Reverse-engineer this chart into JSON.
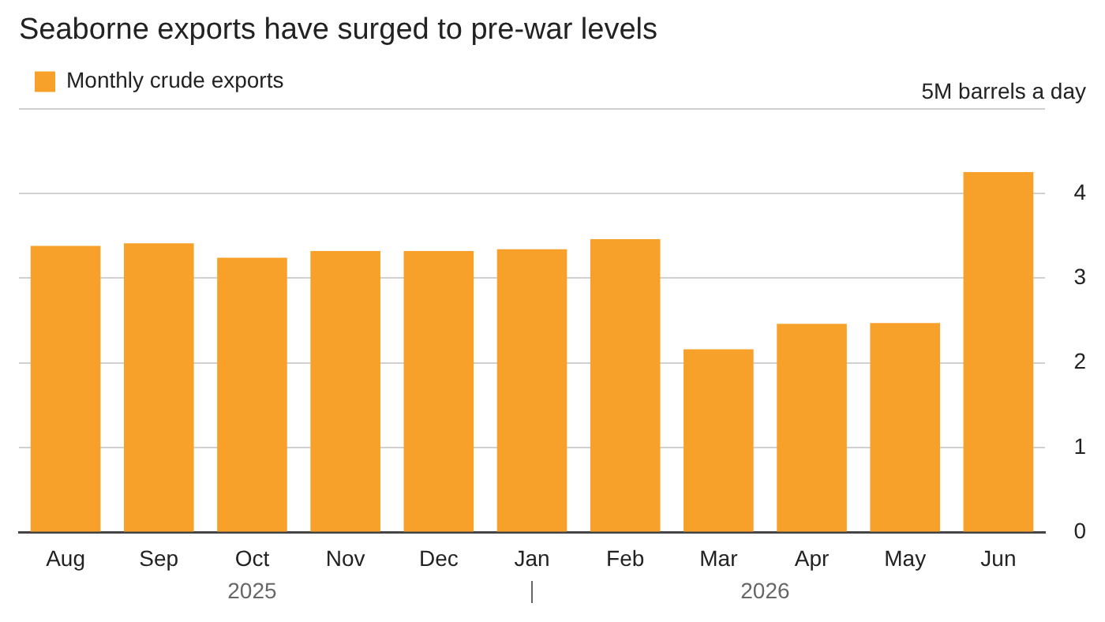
{
  "chart_data": {
    "type": "bar",
    "title": "Seaborne exports have surged to pre-war levels",
    "categories": [
      "Aug",
      "Sep",
      "Oct",
      "Nov",
      "Dec",
      "Jan",
      "Feb",
      "Mar",
      "Apr",
      "May",
      "Jun"
    ],
    "series": [
      {
        "name": "Monthly crude exports",
        "color": "#f7a12b",
        "values": [
          3.38,
          3.41,
          3.24,
          3.32,
          3.32,
          3.34,
          3.46,
          2.16,
          2.46,
          2.47,
          4.25
        ]
      }
    ],
    "ylim": [
      0,
      5
    ],
    "yticks": [
      0,
      1,
      2,
      3,
      4,
      {
        "value": 5,
        "label": "5M barrels a day"
      }
    ],
    "grid": "y",
    "legend": "top left",
    "annotations": [
      "2025",
      "2026"
    ]
  }
}
